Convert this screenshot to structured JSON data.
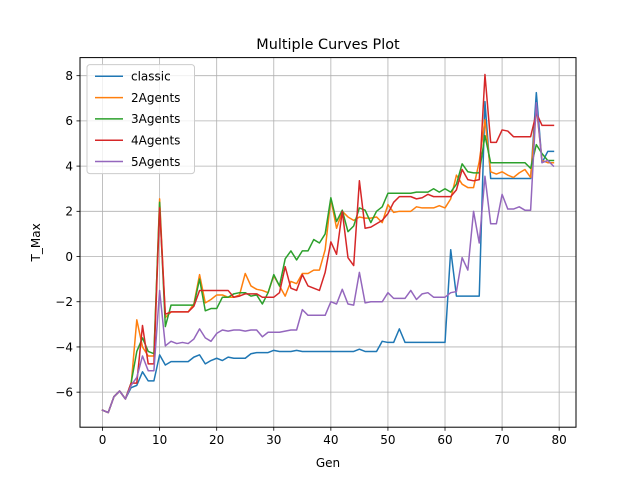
{
  "chart_data": {
    "type": "line",
    "title": "Multiple Curves Plot",
    "xlabel": "Gen",
    "ylabel": "T_Max",
    "xlim": [
      -3.95,
      82.95
    ],
    "ylim": [
      -7.55,
      8.8
    ],
    "xticks": [
      0,
      10,
      20,
      30,
      40,
      50,
      60,
      70,
      80
    ],
    "yticks": [
      -6,
      -4,
      -2,
      0,
      2,
      4,
      6,
      8
    ],
    "grid": true,
    "legend": "upper-left",
    "x": [
      0,
      1,
      2,
      3,
      4,
      5,
      6,
      7,
      8,
      9,
      10,
      11,
      12,
      13,
      14,
      15,
      16,
      17,
      18,
      19,
      20,
      21,
      22,
      23,
      24,
      25,
      26,
      27,
      28,
      29,
      30,
      31,
      32,
      33,
      34,
      35,
      36,
      37,
      38,
      39,
      40,
      41,
      42,
      43,
      44,
      45,
      46,
      47,
      48,
      49,
      50,
      51,
      52,
      53,
      54,
      55,
      56,
      57,
      58,
      59,
      60,
      61,
      62,
      63,
      64,
      65,
      66,
      67,
      68,
      69,
      70,
      71,
      72,
      73,
      74,
      75,
      76,
      77,
      78,
      79
    ],
    "series": [
      {
        "name": "classic",
        "color": "#1f77b4",
        "values": [
          -6.8,
          -6.9,
          -6.2,
          -5.95,
          -6.3,
          -5.8,
          -5.7,
          -5.1,
          -5.5,
          -5.5,
          -4.35,
          -4.8,
          -4.65,
          -4.65,
          -4.65,
          -4.65,
          -4.45,
          -4.35,
          -4.75,
          -4.6,
          -4.5,
          -4.6,
          -4.45,
          -4.5,
          -4.5,
          -4.5,
          -4.3,
          -4.25,
          -4.25,
          -4.25,
          -4.15,
          -4.2,
          -4.2,
          -4.2,
          -4.15,
          -4.2,
          -4.2,
          -4.2,
          -4.2,
          -4.2,
          -4.2,
          -4.2,
          -4.2,
          -4.2,
          -4.2,
          -4.1,
          -4.2,
          -4.2,
          -4.2,
          -3.75,
          -3.8,
          -3.8,
          -3.2,
          -3.8,
          -3.8,
          -3.8,
          -3.8,
          -3.8,
          -3.8,
          -3.8,
          -3.8,
          0.3,
          -1.75,
          -1.75,
          -1.75,
          -1.75,
          -1.75,
          6.85,
          3.45,
          3.45,
          3.45,
          3.45,
          3.45,
          3.45,
          3.45,
          3.45,
          7.25,
          4.15,
          4.65,
          4.65
        ]
      },
      {
        "name": "2Agents",
        "color": "#ff7f0e",
        "values": [
          -6.8,
          -6.9,
          -6.2,
          -5.95,
          -6.3,
          -5.7,
          -2.8,
          -4.0,
          -4.4,
          -4.4,
          2.55,
          -2.7,
          -2.45,
          -2.45,
          -2.45,
          -2.45,
          -2.1,
          -0.8,
          -2.05,
          -1.9,
          -1.7,
          -1.7,
          -1.8,
          -1.8,
          -1.7,
          -0.75,
          -1.3,
          -1.45,
          -1.5,
          -1.6,
          -0.85,
          -1.3,
          -1.75,
          -1.1,
          -1.2,
          -0.75,
          -0.75,
          -0.6,
          -0.6,
          0.3,
          2.55,
          1.25,
          2.0,
          1.75,
          1.6,
          1.75,
          1.7,
          1.7,
          1.75,
          1.5,
          2.3,
          1.95,
          2.0,
          2.0,
          2.0,
          2.2,
          2.15,
          2.15,
          2.15,
          2.25,
          2.15,
          2.55,
          3.6,
          3.2,
          3.05,
          3.05,
          4.2,
          6.05,
          3.75,
          3.65,
          3.75,
          3.6,
          3.5,
          3.7,
          3.85,
          3.5,
          6.6,
          4.25,
          4.15,
          4.15
        ]
      },
      {
        "name": "3Agents",
        "color": "#2ca02c",
        "values": [
          -6.8,
          -6.9,
          -6.2,
          -5.95,
          -6.3,
          -5.6,
          -4.2,
          -3.6,
          -4.2,
          -4.3,
          2.4,
          -3.1,
          -2.15,
          -2.15,
          -2.15,
          -2.15,
          -2.15,
          -1.0,
          -2.4,
          -2.3,
          -2.3,
          -1.8,
          -1.8,
          -1.65,
          -1.6,
          -1.6,
          -1.75,
          -1.7,
          -2.1,
          -1.6,
          -0.8,
          -1.3,
          -0.1,
          0.25,
          -0.15,
          0.25,
          0.25,
          0.75,
          0.6,
          1.0,
          2.6,
          1.55,
          2.05,
          1.1,
          1.35,
          2.15,
          2.05,
          1.5,
          2.0,
          2.2,
          2.8,
          2.8,
          2.8,
          2.8,
          2.8,
          2.85,
          2.85,
          2.85,
          3.0,
          2.85,
          3.0,
          2.85,
          3.2,
          4.1,
          3.75,
          3.7,
          3.7,
          5.35,
          4.15,
          4.15,
          4.15,
          4.15,
          4.15,
          4.15,
          4.15,
          3.9,
          4.95,
          4.55,
          4.25,
          4.25
        ]
      },
      {
        "name": "4Agents",
        "color": "#d62728",
        "values": [
          -6.8,
          -6.9,
          -6.2,
          -5.95,
          -6.3,
          -5.6,
          -5.6,
          -3.05,
          -4.75,
          -4.75,
          2.15,
          -2.55,
          -2.45,
          -2.45,
          -2.45,
          -2.45,
          -2.2,
          -1.5,
          -1.5,
          -1.5,
          -1.5,
          -1.5,
          -1.5,
          -1.8,
          -1.75,
          -1.65,
          -1.65,
          -1.65,
          -1.8,
          -1.8,
          -1.8,
          -1.6,
          -0.45,
          -1.4,
          -1.5,
          -0.8,
          -1.3,
          -1.4,
          -1.5,
          -0.7,
          0.65,
          0.1,
          2.0,
          -0.05,
          -0.4,
          3.35,
          1.25,
          1.3,
          1.45,
          1.6,
          1.9,
          2.4,
          2.65,
          2.65,
          2.65,
          2.55,
          2.6,
          2.75,
          2.65,
          2.65,
          2.65,
          2.65,
          2.95,
          3.85,
          3.4,
          3.35,
          3.4,
          8.05,
          5.05,
          5.05,
          5.6,
          5.55,
          5.3,
          5.3,
          5.3,
          5.3,
          6.35,
          5.8,
          5.8,
          5.8
        ]
      },
      {
        "name": "5Agents",
        "color": "#9467bd",
        "values": [
          -6.8,
          -6.9,
          -6.2,
          -5.95,
          -6.3,
          -5.7,
          -5.35,
          -4.4,
          -5.05,
          -5.05,
          -1.5,
          -3.95,
          -3.75,
          -3.85,
          -3.8,
          -3.85,
          -3.65,
          -3.2,
          -3.6,
          -3.75,
          -3.4,
          -3.25,
          -3.3,
          -3.25,
          -3.25,
          -3.3,
          -3.25,
          -3.25,
          -3.55,
          -3.35,
          -3.35,
          -3.35,
          -3.3,
          -3.25,
          -3.25,
          -2.35,
          -2.6,
          -2.6,
          -2.6,
          -2.6,
          -2.0,
          -2.1,
          -1.45,
          -2.1,
          -2.15,
          -0.7,
          -2.05,
          -2.0,
          -2.0,
          -2.0,
          -1.6,
          -1.85,
          -1.85,
          -1.85,
          -1.5,
          -1.9,
          -1.65,
          -1.6,
          -1.8,
          -1.8,
          -1.8,
          -1.6,
          -1.55,
          -0.05,
          -0.6,
          2.0,
          0.6,
          3.55,
          1.45,
          1.45,
          2.75,
          2.1,
          2.1,
          2.2,
          2.05,
          2.05,
          6.8,
          4.15,
          4.25,
          4.0
        ]
      }
    ]
  }
}
